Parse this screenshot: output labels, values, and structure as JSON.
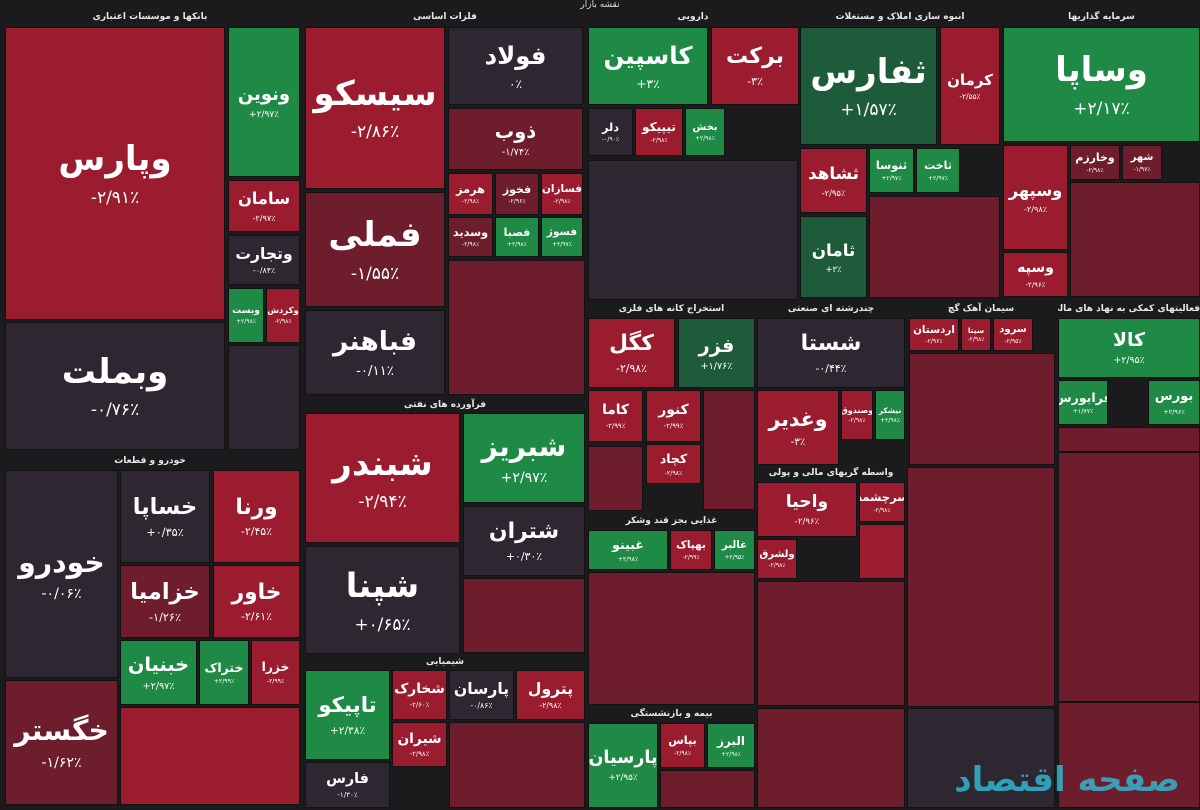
{
  "title": "نقشه بازار",
  "watermark": "صفحه اقتصاد",
  "sectors": [
    {
      "name": "بانکها و موسسات اعتباری",
      "tiles": [
        {
          "name": "وپارس",
          "change": "-۲/۹۱٪"
        },
        {
          "name": "وبملت",
          "change": "-۰/۷۶٪"
        },
        {
          "name": "ونوین",
          "change": "+۲/۹۷٪"
        },
        {
          "name": "سامان",
          "change": "-۲/۹۷٪"
        },
        {
          "name": "وتجارت",
          "change": "-۰/۸۴٪"
        },
        {
          "name": "وبست",
          "change": "+۲/۹۸٪"
        },
        {
          "name": "وکردش",
          "change": "-۲/۹۸٪"
        }
      ]
    },
    {
      "name": "فلزات اساسی",
      "tiles": [
        {
          "name": "سیسکو",
          "change": "-۲/۸۶٪"
        },
        {
          "name": "فولاد",
          "change": "۰٪"
        },
        {
          "name": "ذوب",
          "change": "-۱/۷۴٪"
        },
        {
          "name": "فملی",
          "change": "-۱/۵۵٪"
        },
        {
          "name": "فباهنر",
          "change": "-۰/۱۱٪"
        },
        {
          "name": "هرمز",
          "change": "-۲/۹۸٪"
        },
        {
          "name": "فخوز",
          "change": "-۲/۹۶٪"
        },
        {
          "name": "فسازان",
          "change": "-۲/۹۸٪"
        },
        {
          "name": "وسدید",
          "change": "-۲/۹۸٪"
        },
        {
          "name": "فصبا",
          "change": "+۲/۹۸٪"
        },
        {
          "name": "فسوژ",
          "change": "+۲/۹۷٪"
        }
      ]
    },
    {
      "name": "دارویی",
      "tiles": [
        {
          "name": "کاسپین",
          "change": "+۳٪"
        },
        {
          "name": "برکت",
          "change": "-۳٪"
        },
        {
          "name": "دلر",
          "change": "-۰/۹۰٪"
        },
        {
          "name": "تیپیکو",
          "change": "-۲/۹۸٪"
        },
        {
          "name": "بخش",
          "change": "+۲/۹۸٪"
        }
      ]
    },
    {
      "name": "انبوه سازی املاک و مستغلات",
      "tiles": [
        {
          "name": "ثفارس",
          "change": "+۱/۵۷٪"
        },
        {
          "name": "کرمان",
          "change": "-۲/۵۵٪"
        },
        {
          "name": "ثشاهد",
          "change": "-۲/۹۵٪"
        },
        {
          "name": "ثامان",
          "change": "+۳٪"
        },
        {
          "name": "ثنوسا",
          "change": "+۲/۹۷٪"
        },
        {
          "name": "ثاخت",
          "change": "+۲/۹۷٪"
        }
      ]
    },
    {
      "name": "سرمایه گذاریها",
      "tiles": [
        {
          "name": "وساپا",
          "change": "+۲/۱۷٪"
        },
        {
          "name": "وسپهر",
          "change": "-۲/۹۸٪"
        },
        {
          "name": "وسپه",
          "change": "-۲/۹۶٪"
        },
        {
          "name": "وخارزم",
          "change": "-۲/۹۸٪"
        },
        {
          "name": "شهر",
          "change": "-۱/۹۷٪"
        }
      ]
    },
    {
      "name": "خودرو و قطعات",
      "tiles": [
        {
          "name": "خودرو",
          "change": "-۰/۰۶٪"
        },
        {
          "name": "خگستر",
          "change": "-۱/۶۲٪"
        },
        {
          "name": "خساپا",
          "change": "+۰/۳۵٪"
        },
        {
          "name": "ورنا",
          "change": "-۲/۴۵٪"
        },
        {
          "name": "خزامیا",
          "change": "-۱/۲۶٪"
        },
        {
          "name": "خاور",
          "change": "-۲/۶۱٪"
        },
        {
          "name": "خبنیان",
          "change": "+۲/۹۷٪"
        },
        {
          "name": "ختراک",
          "change": "+۲/۹۹٪"
        },
        {
          "name": "خزرا",
          "change": "-۲/۹۹٪"
        }
      ]
    },
    {
      "name": "فرآورده های نفتی",
      "tiles": [
        {
          "name": "شبندر",
          "change": "-۲/۹۴٪"
        },
        {
          "name": "شبریز",
          "change": "+۲/۹۷٪"
        },
        {
          "name": "شپنا",
          "change": "+۰/۶۵٪"
        },
        {
          "name": "شتران",
          "change": "+۰/۳۰٪"
        }
      ]
    },
    {
      "name": "استخراج کانه های فلزی",
      "tiles": [
        {
          "name": "کگل",
          "change": "-۲/۹۸٪"
        },
        {
          "name": "فزر",
          "change": "+۱/۷۶٪"
        },
        {
          "name": "کاما",
          "change": "-۲/۹۹٪"
        },
        {
          "name": "کنور",
          "change": "-۲/۹۹٪"
        },
        {
          "name": "کچاد",
          "change": "-۲/۹۸٪"
        }
      ]
    },
    {
      "name": "چندرشته ای صنعتی",
      "tiles": [
        {
          "name": "شستا",
          "change": "-۰/۴۴٪"
        },
        {
          "name": "وغدیر",
          "change": "-۳٪"
        },
        {
          "name": "وصندوق",
          "change": "-۲/۹۸٪"
        },
        {
          "name": "نیشکر",
          "change": "+۲/۹۸٪"
        }
      ]
    },
    {
      "name": "سیمان آهک گچ",
      "tiles": [
        {
          "name": "اردستان",
          "change": "-۲/۹۶٪"
        },
        {
          "name": "سیتا",
          "change": "-۲/۹۸٪"
        },
        {
          "name": "سرود",
          "change": "-۲/۹۵٪"
        }
      ]
    },
    {
      "name": "فعالیتهای کمکی به نهاد های مالی",
      "tiles": [
        {
          "name": "کالا",
          "change": "+۲/۹۵٪"
        },
        {
          "name": "بورس",
          "change": "+۲/۹۶٪"
        },
        {
          "name": "فرابورس",
          "change": "+۱/۷۷٪"
        }
      ]
    },
    {
      "name": "غذایی بجز قند وشکر",
      "tiles": [
        {
          "name": "غبینو",
          "change": "+۲/۹۸٪"
        },
        {
          "name": "بهپاک",
          "change": "-۲/۹۹٪"
        },
        {
          "name": "غالبر",
          "change": "+۲/۹۵٪"
        }
      ]
    },
    {
      "name": "واسطه گریهای مالی و پولی",
      "tiles": [
        {
          "name": "واحیا",
          "change": "-۲/۹۶٪"
        },
        {
          "name": "سرچشمه",
          "change": "-۲/۹۸٪"
        },
        {
          "name": "ولشرق",
          "change": "-۲/۹۸٪"
        }
      ]
    },
    {
      "name": "شیمیایی",
      "tiles": [
        {
          "name": "تاپیکو",
          "change": "+۲/۳۸٪"
        },
        {
          "name": "فارس",
          "change": "-۱/۳۰٪"
        },
        {
          "name": "شخارک",
          "change": "-۲/۶۰٪"
        },
        {
          "name": "پارسان",
          "change": "-۰/۸۶٪"
        },
        {
          "name": "پترول",
          "change": "-۲/۹۸٪"
        },
        {
          "name": "شیران",
          "change": "-۲/۹۸٪"
        }
      ]
    },
    {
      "name": "بیمه و بازنشستگی",
      "tiles": [
        {
          "name": "پارسیان",
          "change": "+۲/۹۵٪"
        },
        {
          "name": "بپاس",
          "change": "-۲/۹۸٪"
        },
        {
          "name": "البرز",
          "change": "+۲/۹۸٪"
        }
      ]
    }
  ]
}
